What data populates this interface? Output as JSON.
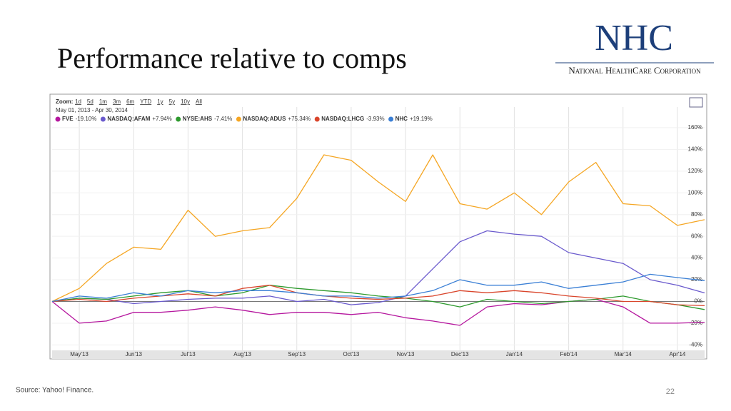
{
  "slide": {
    "title": "Performance relative to comps",
    "logo": "NHC",
    "logo_subtitle": "National HealthCare Corporation",
    "source": "Source:  Yahoo! Finance.",
    "page_number": "22"
  },
  "chart_data": {
    "type": "line",
    "zoom_label": "Zoom:",
    "zoom_options": [
      "1d",
      "5d",
      "1m",
      "3m",
      "6m",
      "YTD",
      "1y",
      "5y",
      "10y",
      "All"
    ],
    "date_range": "May 01, 2013  -  Apr 30, 2014",
    "x": [
      0,
      0.5,
      1,
      1.5,
      2,
      2.5,
      3,
      3.5,
      4,
      4.5,
      5,
      5.5,
      6,
      6.5,
      7,
      7.5,
      8,
      8.5,
      9,
      9.5,
      10,
      10.5,
      11,
      11.5,
      12
    ],
    "xlim": [
      0,
      12
    ],
    "xticks": [
      {
        "value": 0.5,
        "label": "May'13"
      },
      {
        "value": 1.5,
        "label": "Jun'13"
      },
      {
        "value": 2.5,
        "label": "Jul'13"
      },
      {
        "value": 3.5,
        "label": "Aug'13"
      },
      {
        "value": 4.5,
        "label": "Sep'13"
      },
      {
        "value": 5.5,
        "label": "Oct'13"
      },
      {
        "value": 6.5,
        "label": "Nov'13"
      },
      {
        "value": 7.5,
        "label": "Dec'13"
      },
      {
        "value": 8.5,
        "label": "Jan'14"
      },
      {
        "value": 9.5,
        "label": "Feb'14"
      },
      {
        "value": 10.5,
        "label": "Mar'14"
      },
      {
        "value": 11.5,
        "label": "Apr'14"
      }
    ],
    "ylim": [
      -45,
      179
    ],
    "yticks": [
      {
        "value": -40,
        "label": "-40%"
      },
      {
        "value": -20,
        "label": "-20%"
      },
      {
        "value": 0,
        "label": "0%"
      },
      {
        "value": 20,
        "label": "20%"
      },
      {
        "value": 40,
        "label": "40%"
      },
      {
        "value": 60,
        "label": "60%"
      },
      {
        "value": 80,
        "label": "80%"
      },
      {
        "value": 100,
        "label": "100%"
      },
      {
        "value": 120,
        "label": "120%"
      },
      {
        "value": 140,
        "label": "140%"
      },
      {
        "value": 160,
        "label": "160%"
      }
    ],
    "grid": true,
    "series": [
      {
        "name": "FVE",
        "change": "-19.10%",
        "color": "#b5179e",
        "values": [
          0,
          -20,
          -18,
          -10,
          -10,
          -8,
          -5,
          -8,
          -12,
          -10,
          -10,
          -12,
          -10,
          -15,
          -18,
          -22,
          -5,
          -2,
          -3,
          0,
          2,
          -5,
          -20,
          -20,
          -19.1
        ]
      },
      {
        "name": "NASDAQ:AFAM",
        "change": "+7.94%",
        "color": "#6a5acd",
        "values": [
          0,
          3,
          2,
          -2,
          0,
          2,
          3,
          3,
          5,
          0,
          2,
          -3,
          -1,
          5,
          30,
          55,
          65,
          62,
          60,
          45,
          40,
          35,
          20,
          15,
          7.9
        ]
      },
      {
        "name": "NYSE:AHS",
        "change": "-7.41%",
        "color": "#2e9a2e",
        "values": [
          0,
          3,
          2,
          5,
          8,
          10,
          5,
          8,
          15,
          12,
          10,
          8,
          5,
          3,
          0,
          -5,
          2,
          0,
          -2,
          0,
          2,
          5,
          0,
          -3,
          -7.4
        ]
      },
      {
        "name": "NASDAQ:ADUS",
        "change": "+75.34%",
        "color": "#f5a623",
        "values": [
          0,
          12,
          35,
          50,
          48,
          84,
          60,
          65,
          68,
          95,
          135,
          130,
          110,
          92,
          135,
          90,
          85,
          100,
          80,
          110,
          128,
          90,
          88,
          70,
          75.3
        ]
      },
      {
        "name": "NASDAQ:LHCG",
        "change": "-3.93%",
        "color": "#d9452b",
        "values": [
          0,
          2,
          0,
          3,
          5,
          7,
          5,
          12,
          15,
          8,
          5,
          3,
          2,
          3,
          5,
          10,
          8,
          10,
          8,
          5,
          3,
          0,
          0,
          -3,
          -3.9
        ]
      },
      {
        "name": "NHC",
        "change": "+19.19%",
        "color": "#3a7fd5",
        "values": [
          0,
          5,
          3,
          8,
          5,
          10,
          8,
          10,
          10,
          8,
          5,
          5,
          3,
          5,
          10,
          20,
          15,
          15,
          18,
          12,
          15,
          18,
          25,
          22,
          19.2
        ]
      }
    ]
  }
}
